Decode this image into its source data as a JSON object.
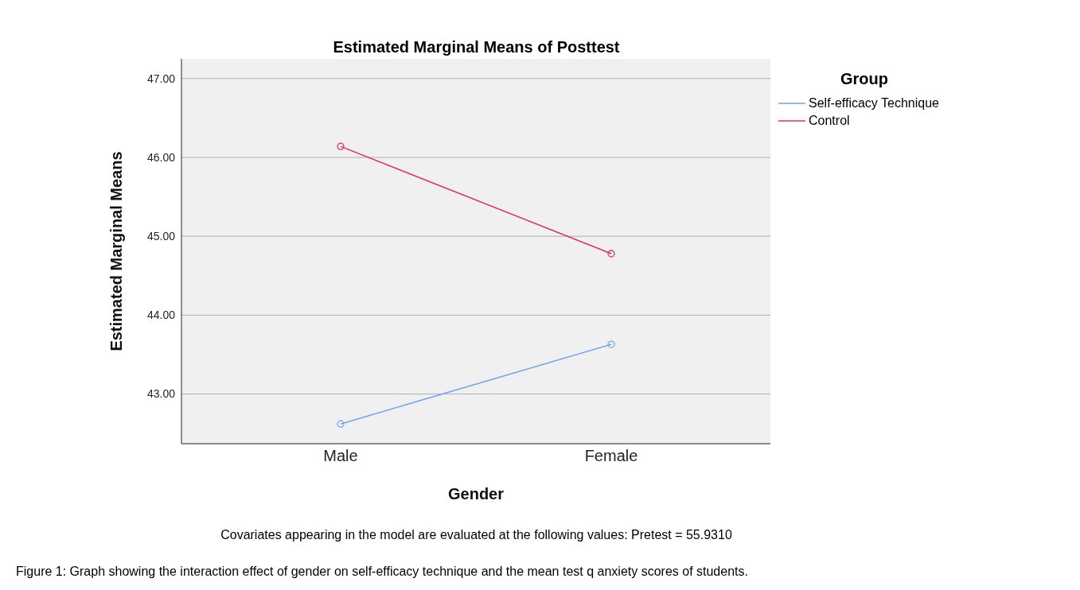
{
  "chart_data": {
    "type": "line",
    "title": "Estimated Marginal Means of Posttest",
    "xlabel": "Gender",
    "ylabel": "Estimated Marginal Means",
    "legend_title": "Group",
    "categories": [
      "Male",
      "Female"
    ],
    "series": [
      {
        "name": "Self-efficacy Technique",
        "color": "#6fa4ee",
        "values": [
          42.62,
          43.63
        ]
      },
      {
        "name": "Control",
        "color": "#e0325a",
        "values": [
          46.14,
          44.78
        ]
      }
    ],
    "ylim": [
      42.37,
      47.25
    ],
    "yticks": [
      {
        "value": 43,
        "label": "43.00"
      },
      {
        "value": 44,
        "label": "44.00"
      },
      {
        "value": 45,
        "label": "45.00"
      },
      {
        "value": 46,
        "label": "46.00"
      },
      {
        "value": 47,
        "label": "47.00"
      }
    ],
    "grid": "y",
    "legend": "top right",
    "marker": "circle",
    "line_style": "solid",
    "annotations": [
      "Covariates appearing in the model are evaluated at the following values: Pretest = 55.9310",
      "Figure 1: Graph showing the interaction effect of gender on self-efficacy technique and the mean test q anxiety scores of students."
    ]
  }
}
